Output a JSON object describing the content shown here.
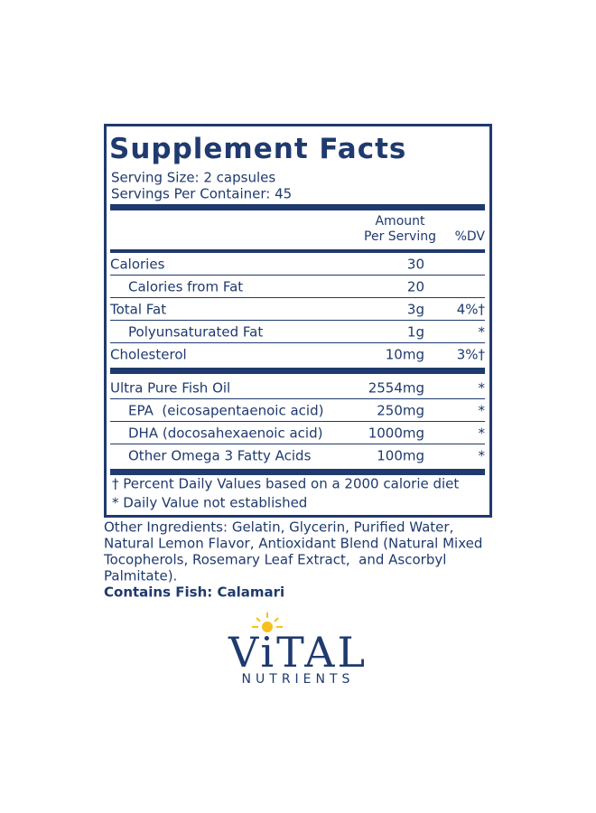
{
  "panel": {
    "title": "Supplement Facts",
    "serving_size": "Serving Size: 2 capsules",
    "servings_per_container": "Servings Per Container: 45",
    "amount_header": [
      "Amount",
      "Per Serving"
    ],
    "dv_header": "%DV",
    "groups": [
      [
        {
          "name": "Calories",
          "amount": "30"
        },
        {
          "name": "Calories from Fat",
          "amount": "20",
          "indent": true
        },
        {
          "name": "Total Fat",
          "amount": "3g",
          "dv": "4%†"
        },
        {
          "name": "Polyunsaturated Fat",
          "amount": "1g",
          "dv": "*",
          "indent": true
        },
        {
          "name": "Cholesterol",
          "amount": "10mg",
          "dv": "3%†"
        }
      ],
      [
        {
          "name": "Ultra Pure Fish Oil",
          "amount": "2554mg",
          "dv": "*"
        },
        {
          "name": "EPA  (eicosapentaenoic acid)",
          "amount": "250mg",
          "dv": "*",
          "indent": true
        },
        {
          "name": "DHA (docosahexaenoic acid)",
          "amount": "1000mg",
          "dv": "*",
          "indent": true
        },
        {
          "name": "Other Omega 3 Fatty Acids",
          "amount": "100mg",
          "dv": "*",
          "indent": true
        }
      ]
    ],
    "footnotes": [
      "† Percent Daily Values based on a 2000 calorie diet",
      "* Daily Value not established"
    ]
  },
  "other_ingredients": [
    "Other Ingredients: Gelatin, Glycerin, Purified Water,",
    "Natural Lemon Flavor, Antioxidant Blend (Natural Mixed",
    "Tocopherols, Rosemary Leaf Extract,  and Ascorbyl",
    "Palmitate)."
  ],
  "contains": "Contains Fish: Calamari",
  "logo": {
    "brand": "ViTAL",
    "tagline": "NUTRIENTS"
  }
}
